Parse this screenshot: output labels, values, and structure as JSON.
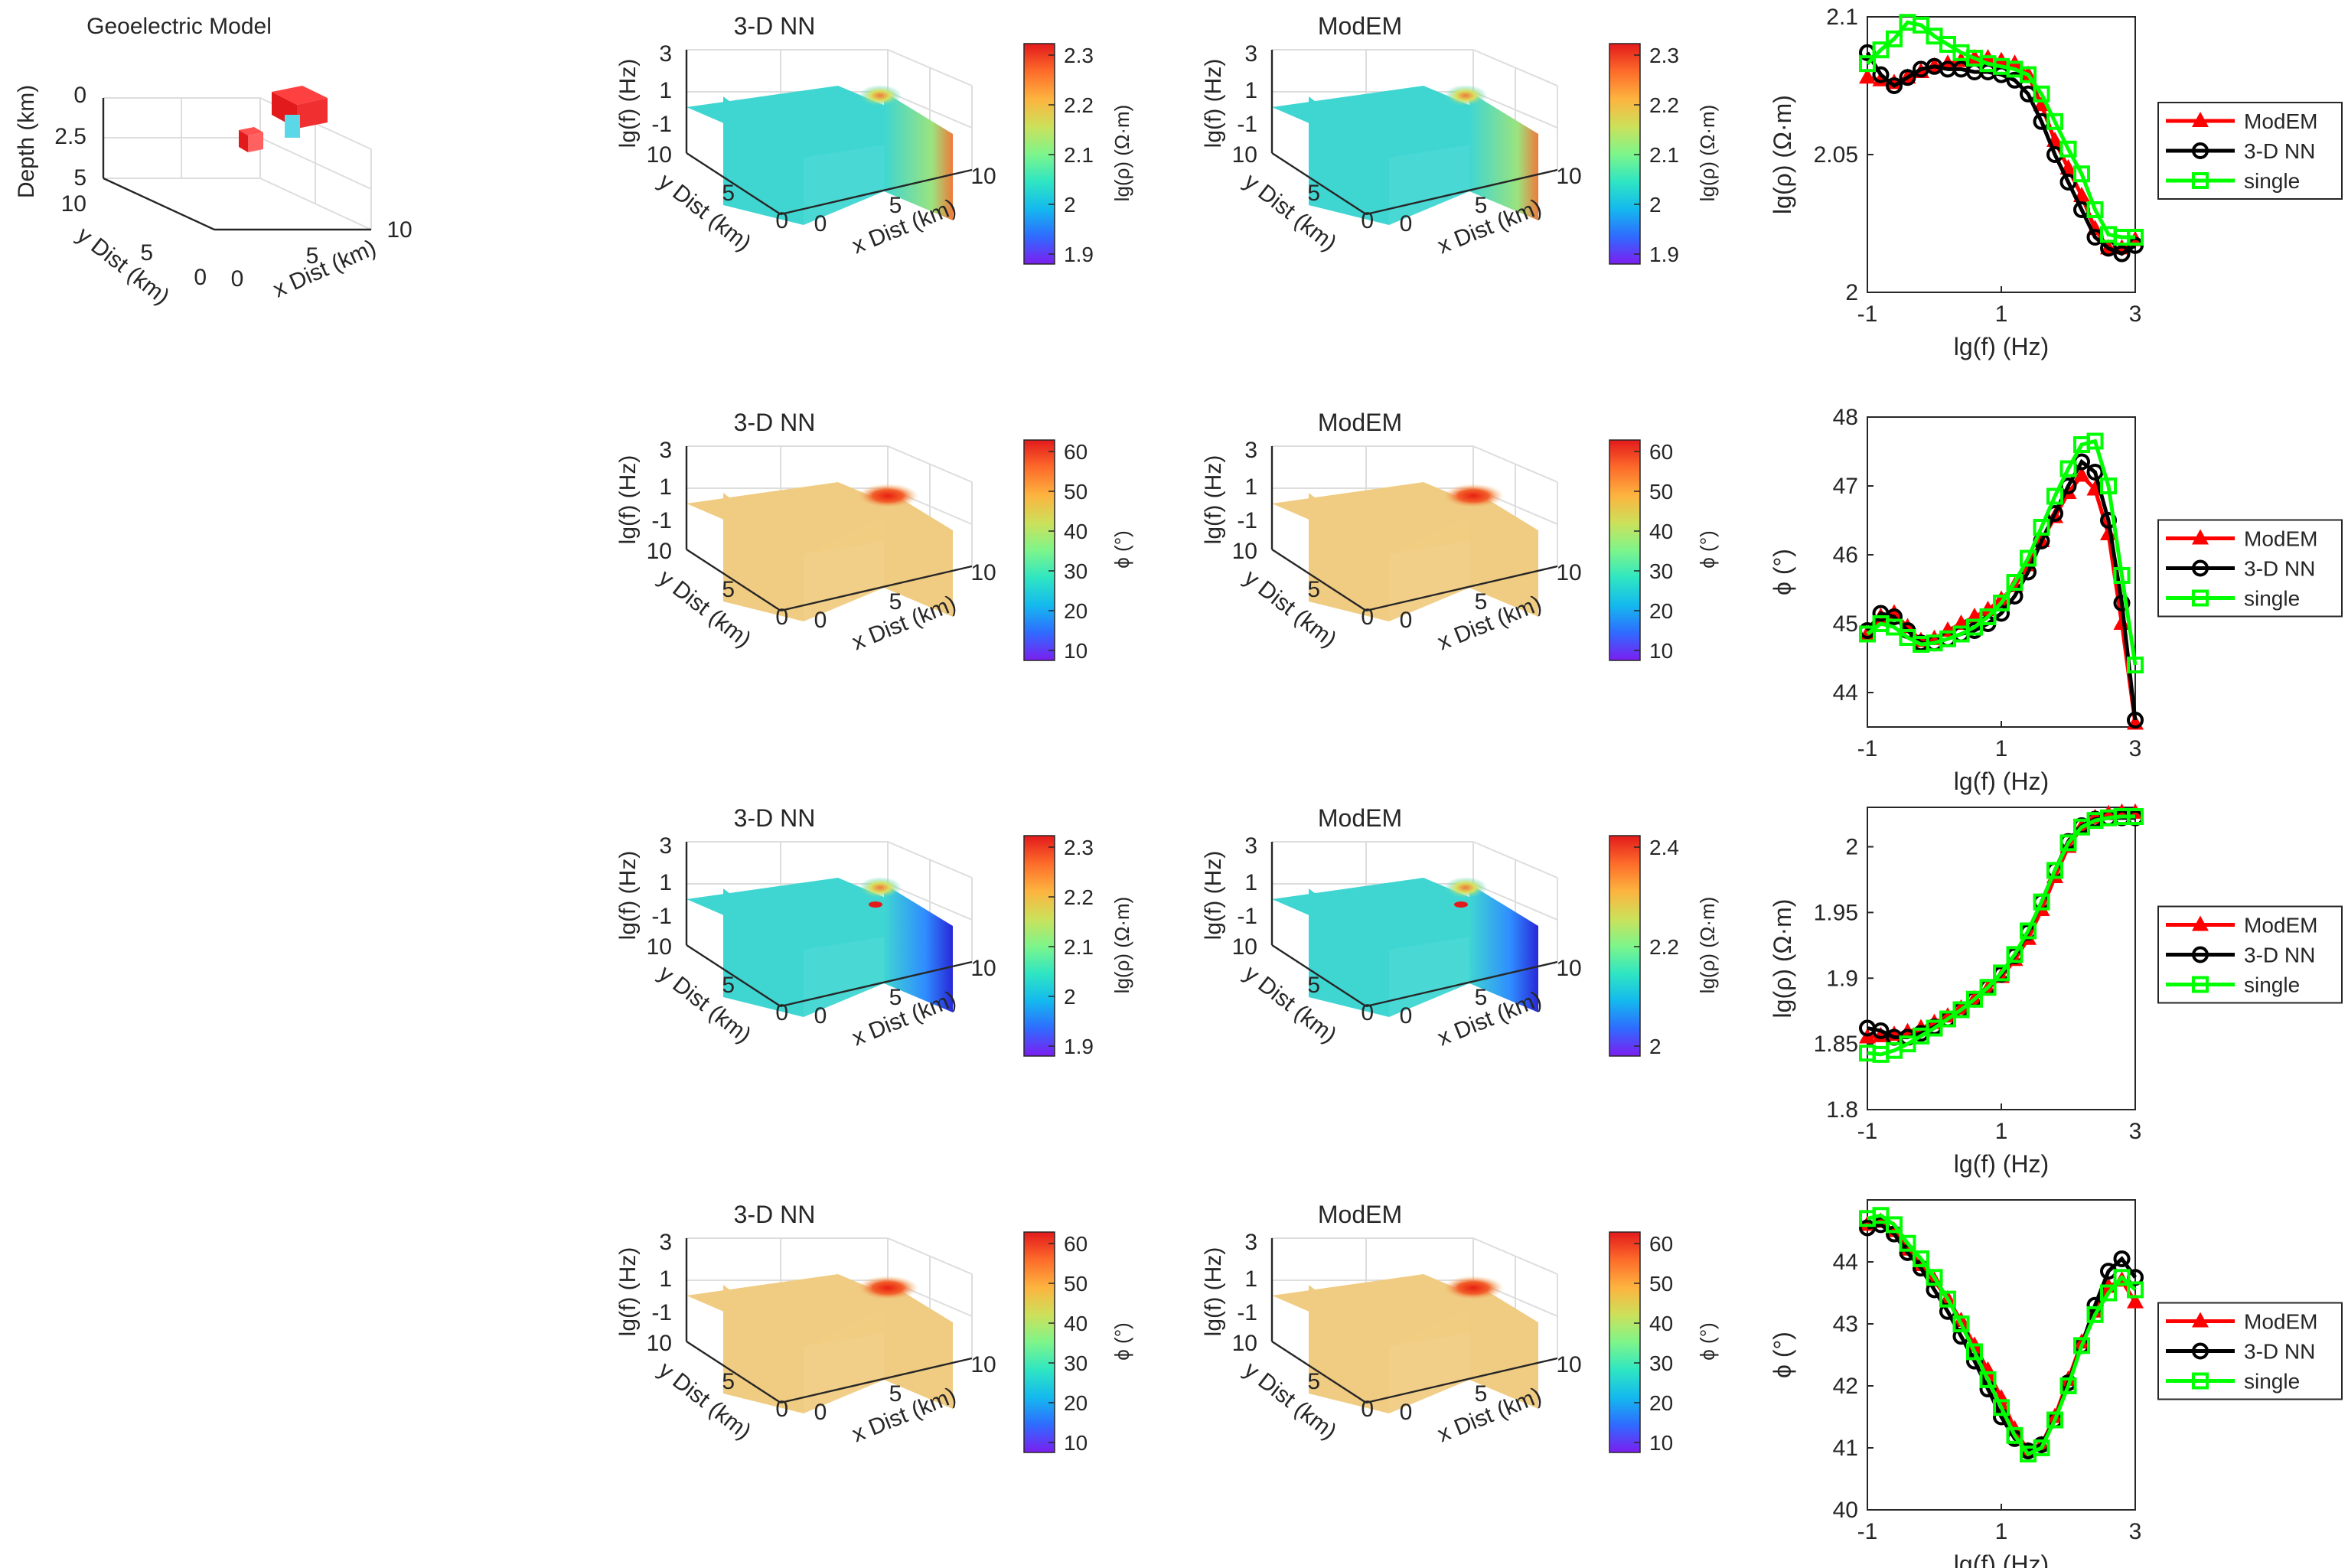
{
  "colors": {
    "modem": "#ff0000",
    "nn": "#000000",
    "single": "#00ff00",
    "axis": "#262626",
    "grid": "#dddddd",
    "rho_face": "#3fd6d2",
    "phi_face": "#f0cc82",
    "rainbow": [
      "#7c1ef0",
      "#2f6bff",
      "#14b9ee",
      "#2fe6c2",
      "#7ef58a",
      "#cde05a",
      "#fdb33f",
      "#fd6b2a",
      "#e31a1c"
    ]
  },
  "geo": {
    "title": "Geoelectric Model",
    "zlabel": "Depth (km)",
    "ylabel": "y Dist (km)",
    "xlabel": "x Dist (km)",
    "zticks": [
      "0",
      "2.5",
      "5"
    ],
    "yticks": [
      "10",
      "5",
      "0"
    ],
    "xticks": [
      "0",
      "5",
      "10"
    ]
  },
  "panels3d": [
    {
      "title": "3-D NN",
      "type": "rho",
      "cb_label": "lg(ρ) (Ω·m)",
      "cb_ticks": [
        "2.3",
        "2.2",
        "2.1",
        "2",
        "1.9"
      ],
      "hot": "a",
      "zlabel": "lg(f) (Hz)",
      "ylabel": "y Dist (km)",
      "xlabel": "x Dist (km)",
      "zticks": [
        "3",
        "1",
        "-1"
      ],
      "yticks": [
        "10",
        "5",
        "0"
      ],
      "xticks": [
        "0",
        "5",
        "10"
      ]
    },
    {
      "title": "ModEM",
      "type": "rho",
      "cb_label": "lg(ρ) (Ω·m)",
      "cb_ticks": [
        "2.3",
        "2.2",
        "2.1",
        "2",
        "1.9"
      ],
      "hot": "a",
      "zlabel": "lg(f) (Hz)",
      "ylabel": "y Dist (km)",
      "xlabel": "x Dist (km)",
      "zticks": [
        "3",
        "1",
        "-1"
      ],
      "yticks": [
        "10",
        "5",
        "0"
      ],
      "xticks": [
        "0",
        "5",
        "10"
      ]
    },
    {
      "title": "3-D NN",
      "type": "phi",
      "cb_label": "ϕ (°)",
      "cb_ticks": [
        "60",
        "50",
        "40",
        "30",
        "20",
        "10"
      ],
      "hot": "b",
      "zlabel": "lg(f) (Hz)",
      "ylabel": "y Dist (km)",
      "xlabel": "x Dist (km)",
      "zticks": [
        "3",
        "1",
        "-1"
      ],
      "yticks": [
        "10",
        "5",
        "0"
      ],
      "xticks": [
        "0",
        "5",
        "10"
      ]
    },
    {
      "title": "ModEM",
      "type": "phi",
      "cb_label": "ϕ (°)",
      "cb_ticks": [
        "60",
        "50",
        "40",
        "30",
        "20",
        "10"
      ],
      "hot": "b",
      "zlabel": "lg(f) (Hz)",
      "ylabel": "y Dist (km)",
      "xlabel": "x Dist (km)",
      "zticks": [
        "3",
        "1",
        "-1"
      ],
      "yticks": [
        "10",
        "5",
        "0"
      ],
      "xticks": [
        "0",
        "5",
        "10"
      ]
    },
    {
      "title": "3-D NN",
      "type": "rho",
      "cb_label": "lg(ρ) (Ω·m)",
      "cb_ticks": [
        "2.3",
        "2.2",
        "2.1",
        "2",
        "1.9"
      ],
      "hot": "c",
      "zlabel": "lg(f) (Hz)",
      "ylabel": "y Dist (km)",
      "xlabel": "x Dist (km)",
      "zticks": [
        "3",
        "1",
        "-1"
      ],
      "yticks": [
        "10",
        "5",
        "0"
      ],
      "xticks": [
        "0",
        "5",
        "10"
      ]
    },
    {
      "title": "ModEM",
      "type": "rho",
      "cb_label": "lg(ρ) (Ω·m)",
      "cb_ticks": [
        "2.4",
        "2.2",
        "2"
      ],
      "hot": "c",
      "zlabel": "lg(f) (Hz)",
      "ylabel": "y Dist (km)",
      "xlabel": "x Dist (km)",
      "zticks": [
        "3",
        "1",
        "-1"
      ],
      "yticks": [
        "10",
        "5",
        "0"
      ],
      "xticks": [
        "0",
        "5",
        "10"
      ]
    },
    {
      "title": "3-D NN",
      "type": "phi",
      "cb_label": "ϕ (°)",
      "cb_ticks": [
        "60",
        "50",
        "40",
        "30",
        "20",
        "10"
      ],
      "hot": "d",
      "zlabel": "lg(f) (Hz)",
      "ylabel": "y Dist (km)",
      "xlabel": "x Dist (km)",
      "zticks": [
        "3",
        "1",
        "-1"
      ],
      "yticks": [
        "10",
        "5",
        "0"
      ],
      "xticks": [
        "0",
        "5",
        "10"
      ]
    },
    {
      "title": "ModEM",
      "type": "phi",
      "cb_label": "ϕ (°)",
      "cb_ticks": [
        "60",
        "50",
        "40",
        "30",
        "20",
        "10"
      ],
      "hot": "d",
      "zlabel": "lg(f) (Hz)",
      "ylabel": "y Dist (km)",
      "xlabel": "x Dist (km)",
      "zticks": [
        "3",
        "1",
        "-1"
      ],
      "yticks": [
        "10",
        "5",
        "0"
      ],
      "xticks": [
        "0",
        "5",
        "10"
      ]
    }
  ],
  "chart_data": [
    {
      "type": "line",
      "xlabel": "lg(f) (Hz)",
      "ylabel": "lg(ρ) (Ω·m)",
      "xlim": [
        -1,
        3
      ],
      "ylim": [
        2,
        2.1
      ],
      "xticks": [
        "-1",
        "1",
        "3"
      ],
      "yticks": [
        "2.1",
        "2.05",
        "2"
      ],
      "legend": "right-outside",
      "x": [
        -1,
        -0.8,
        -0.6,
        -0.4,
        -0.2,
        0,
        0.2,
        0.4,
        0.6,
        0.8,
        1,
        1.2,
        1.4,
        1.6,
        1.8,
        2,
        2.2,
        2.4,
        2.6,
        2.8,
        3
      ],
      "series": [
        {
          "name": "ModEM",
          "values": [
            2.078,
            2.077,
            2.076,
            2.078,
            2.08,
            2.082,
            2.083,
            2.084,
            2.085,
            2.085,
            2.084,
            2.083,
            2.079,
            2.068,
            2.055,
            2.045,
            2.035,
            2.023,
            2.016,
            2.016,
            2.019
          ]
        },
        {
          "name": "3-D NN",
          "values": [
            2.087,
            2.079,
            2.075,
            2.078,
            2.081,
            2.082,
            2.081,
            2.081,
            2.08,
            2.08,
            2.079,
            2.077,
            2.072,
            2.062,
            2.05,
            2.04,
            2.03,
            2.02,
            2.016,
            2.014,
            2.017
          ]
        },
        {
          "name": "single",
          "values": [
            2.083,
            2.088,
            2.092,
            2.098,
            2.097,
            2.093,
            2.09,
            2.087,
            2.085,
            2.083,
            2.082,
            2.081,
            2.079,
            2.072,
            2.062,
            2.052,
            2.043,
            2.03,
            2.021,
            2.02,
            2.02
          ]
        }
      ]
    },
    {
      "type": "line",
      "xlabel": "lg(f) (Hz)",
      "ylabel": "ϕ (°)",
      "xlim": [
        -1,
        3
      ],
      "ylim": [
        43.5,
        48
      ],
      "xticks": [
        "-1",
        "1",
        "3"
      ],
      "yticks": [
        "48",
        "47",
        "46",
        "45",
        "44"
      ],
      "legend": "right-outside",
      "x": [
        -1,
        -0.8,
        -0.6,
        -0.4,
        -0.2,
        0,
        0.2,
        0.4,
        0.6,
        0.8,
        1,
        1.2,
        1.4,
        1.6,
        1.8,
        2,
        2.2,
        2.4,
        2.6,
        2.8,
        3
      ],
      "series": [
        {
          "name": "ModEM",
          "values": [
            44.85,
            45.1,
            45.15,
            44.95,
            44.75,
            44.78,
            44.9,
            45.0,
            45.1,
            45.2,
            45.35,
            45.55,
            45.85,
            46.2,
            46.55,
            46.9,
            47.15,
            46.95,
            46.3,
            45.0,
            43.55
          ]
        },
        {
          "name": "3-D NN",
          "values": [
            44.9,
            45.15,
            45.1,
            44.9,
            44.72,
            44.72,
            44.78,
            44.85,
            44.9,
            45.0,
            45.15,
            45.4,
            45.75,
            46.2,
            46.6,
            47.0,
            47.35,
            47.2,
            46.5,
            45.3,
            43.6
          ]
        },
        {
          "name": "single",
          "values": [
            44.85,
            45.0,
            44.95,
            44.8,
            44.7,
            44.72,
            44.78,
            44.85,
            44.95,
            45.1,
            45.3,
            45.6,
            45.95,
            46.4,
            46.85,
            47.25,
            47.6,
            47.65,
            47.0,
            45.7,
            44.4
          ]
        }
      ]
    },
    {
      "type": "line",
      "xlabel": "lg(f) (Hz)",
      "ylabel": "lg(ρ) (Ω·m)",
      "xlim": [
        -1,
        3
      ],
      "ylim": [
        1.8,
        2.03
      ],
      "xticks": [
        "-1",
        "1",
        "3"
      ],
      "yticks": [
        "2",
        "1.95",
        "1.9",
        "1.85",
        "1.8"
      ],
      "legend": "right-outside",
      "x": [
        -1,
        -0.8,
        -0.6,
        -0.4,
        -0.2,
        0,
        0.2,
        0.4,
        0.6,
        0.8,
        1,
        1.2,
        1.4,
        1.6,
        1.8,
        2,
        2.2,
        2.4,
        2.6,
        2.8,
        3
      ],
      "series": [
        {
          "name": "ModEM",
          "values": [
            1.855,
            1.856,
            1.857,
            1.859,
            1.862,
            1.866,
            1.871,
            1.877,
            1.884,
            1.892,
            1.901,
            1.914,
            1.93,
            1.952,
            1.977,
            2.0,
            2.015,
            2.022,
            2.025,
            2.026,
            2.026
          ]
        },
        {
          "name": "3-D NN",
          "values": [
            1.862,
            1.86,
            1.855,
            1.855,
            1.858,
            1.863,
            1.869,
            1.876,
            1.884,
            1.893,
            1.903,
            1.917,
            1.935,
            1.958,
            1.982,
            2.004,
            2.016,
            2.021,
            2.022,
            2.022,
            2.022
          ]
        },
        {
          "name": "single",
          "values": [
            1.843,
            1.842,
            1.845,
            1.85,
            1.856,
            1.862,
            1.869,
            1.876,
            1.884,
            1.893,
            1.904,
            1.918,
            1.936,
            1.958,
            1.982,
            2.003,
            2.015,
            2.02,
            2.022,
            2.023,
            2.023
          ]
        }
      ]
    },
    {
      "type": "line",
      "xlabel": "lg(f) (Hz)",
      "ylabel": "ϕ (°)",
      "xlim": [
        -1,
        3
      ],
      "ylim": [
        40,
        45
      ],
      "xticks": [
        "-1",
        "1",
        "3"
      ],
      "yticks": [
        "44",
        "43",
        "42",
        "41",
        "40"
      ],
      "legend": "right-outside",
      "x": [
        -1,
        -0.8,
        -0.6,
        -0.4,
        -0.2,
        0,
        0.2,
        0.4,
        0.6,
        0.8,
        1,
        1.2,
        1.4,
        1.6,
        1.8,
        2,
        2.2,
        2.4,
        2.6,
        2.8,
        3
      ],
      "series": [
        {
          "name": "ModEM",
          "values": [
            44.6,
            44.65,
            44.5,
            44.2,
            43.95,
            43.7,
            43.4,
            43.05,
            42.65,
            42.25,
            41.8,
            41.3,
            40.95,
            41.05,
            41.5,
            42.1,
            42.7,
            43.2,
            43.6,
            43.7,
            43.35
          ]
        },
        {
          "name": "3-D NN",
          "values": [
            44.55,
            44.6,
            44.45,
            44.15,
            43.9,
            43.55,
            43.2,
            42.8,
            42.4,
            41.95,
            41.5,
            41.15,
            40.95,
            41.05,
            41.45,
            42.05,
            42.65,
            43.3,
            43.85,
            44.05,
            43.75
          ]
        },
        {
          "name": "single",
          "values": [
            44.7,
            44.75,
            44.6,
            44.3,
            44.05,
            43.75,
            43.4,
            43.0,
            42.55,
            42.1,
            41.65,
            41.2,
            40.9,
            41.0,
            41.45,
            42.0,
            42.65,
            43.15,
            43.5,
            43.75,
            43.55
          ]
        }
      ]
    }
  ]
}
